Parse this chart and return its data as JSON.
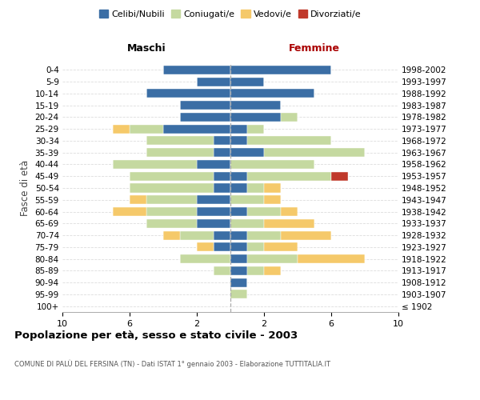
{
  "age_groups": [
    "100+",
    "95-99",
    "90-94",
    "85-89",
    "80-84",
    "75-79",
    "70-74",
    "65-69",
    "60-64",
    "55-59",
    "50-54",
    "45-49",
    "40-44",
    "35-39",
    "30-34",
    "25-29",
    "20-24",
    "15-19",
    "10-14",
    "5-9",
    "0-4"
  ],
  "birth_years": [
    "≤ 1902",
    "1903-1907",
    "1908-1912",
    "1913-1917",
    "1918-1922",
    "1923-1927",
    "1928-1932",
    "1933-1937",
    "1938-1942",
    "1943-1947",
    "1948-1952",
    "1953-1957",
    "1958-1962",
    "1963-1967",
    "1968-1972",
    "1973-1977",
    "1978-1982",
    "1983-1987",
    "1988-1992",
    "1993-1997",
    "1998-2002"
  ],
  "maschi": {
    "celibi": [
      0,
      0,
      0,
      0,
      0,
      1,
      1,
      2,
      2,
      2,
      1,
      1,
      2,
      1,
      1,
      4,
      3,
      3,
      5,
      2,
      4
    ],
    "coniugati": [
      0,
      0,
      0,
      1,
      3,
      0,
      2,
      3,
      3,
      3,
      5,
      5,
      5,
      4,
      4,
      2,
      0,
      0,
      0,
      0,
      0
    ],
    "vedovi": [
      0,
      0,
      0,
      0,
      0,
      1,
      1,
      0,
      2,
      1,
      0,
      0,
      0,
      0,
      0,
      1,
      0,
      0,
      0,
      0,
      0
    ],
    "divorziati": [
      0,
      0,
      0,
      0,
      0,
      0,
      0,
      0,
      0,
      0,
      0,
      0,
      0,
      0,
      0,
      0,
      0,
      0,
      0,
      0,
      0
    ]
  },
  "femmine": {
    "nubili": [
      0,
      0,
      1,
      1,
      1,
      1,
      1,
      0,
      1,
      0,
      1,
      1,
      0,
      2,
      1,
      1,
      3,
      3,
      5,
      2,
      6
    ],
    "coniugate": [
      0,
      1,
      0,
      1,
      3,
      1,
      2,
      2,
      2,
      2,
      1,
      5,
      5,
      6,
      5,
      1,
      1,
      0,
      0,
      0,
      0
    ],
    "vedove": [
      0,
      0,
      0,
      1,
      4,
      2,
      3,
      3,
      1,
      1,
      1,
      0,
      0,
      0,
      0,
      0,
      0,
      0,
      0,
      0,
      0
    ],
    "divorziate": [
      0,
      0,
      0,
      0,
      0,
      0,
      0,
      0,
      0,
      0,
      0,
      1,
      0,
      0,
      0,
      0,
      0,
      0,
      0,
      0,
      0
    ]
  },
  "colors": {
    "celibi": "#3b6ea5",
    "coniugati": "#c5d9a0",
    "vedovi": "#f5c96a",
    "divorziati": "#c0392b"
  },
  "xlim": 10,
  "title": "Popolazione per età, sesso e stato civile - 2003",
  "subtitle": "COMUNE DI PALÙ DEL FERSINA (TN) - Dati ISTAT 1° gennaio 2003 - Elaborazione TUTTITALIA.IT",
  "ylabel_left": "Fasce di età",
  "header_maschi": "Maschi",
  "header_femmine": "Femmine",
  "legend_labels": [
    "Celibi/Nubili",
    "Coniugati/e",
    "Vedovi/e",
    "Divorziati/e"
  ],
  "bg_color": "#ffffff",
  "grid_color": "#dddddd",
  "femmine_color": "#aa0000"
}
